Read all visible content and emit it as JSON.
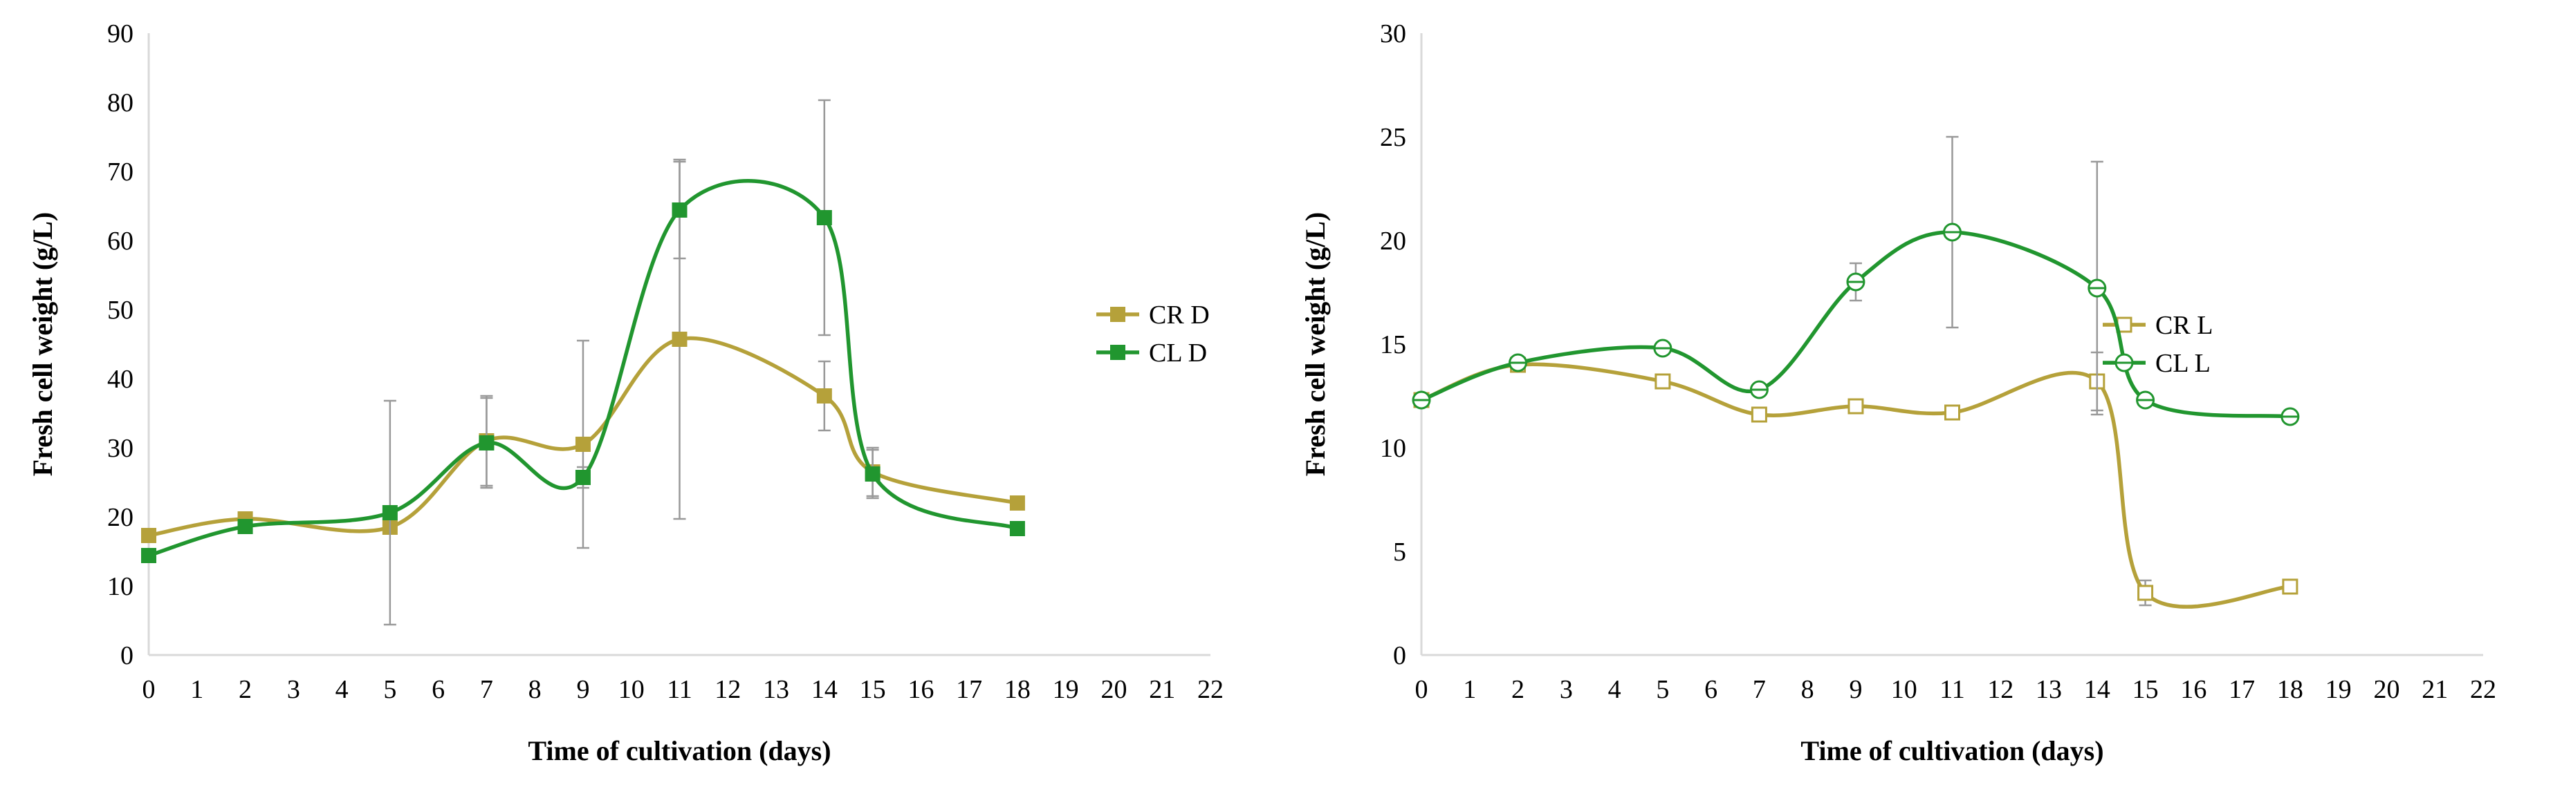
{
  "figure": {
    "colors": {
      "cr": "#b5a13a",
      "cl": "#21962f",
      "error_bar": "#999999",
      "axis": "#d9d9d9",
      "text": "#000000"
    }
  },
  "chart_data": [
    {
      "type": "line",
      "title": "",
      "xlabel": "Time of cultivation (days)",
      "ylabel": "Fresh cell weight (g/L)",
      "xlim": [
        0,
        22
      ],
      "ylim": [
        0,
        90
      ],
      "x_ticks": [
        "0",
        "1",
        "2",
        "3",
        "4",
        "5",
        "6",
        "7",
        "8",
        "9",
        "10",
        "11",
        "12",
        "13",
        "14",
        "15",
        "16",
        "17",
        "18",
        "19",
        "20",
        "21",
        "22"
      ],
      "y_ticks": [
        "0",
        "10",
        "20",
        "30",
        "40",
        "50",
        "60",
        "70",
        "80",
        "90"
      ],
      "grid": false,
      "legend_position": "right",
      "marker": "filled-square",
      "series": [
        {
          "name": "CR D",
          "color": "#b5a13a",
          "x": [
            0,
            2,
            5,
            7,
            9,
            11,
            14,
            15,
            18
          ],
          "y": [
            17.3,
            19.7,
            18.5,
            31.0,
            30.5,
            45.7,
            37.5,
            26.5,
            22.0
          ],
          "error": [
            0,
            0,
            0,
            6.5,
            15.0,
            26.0,
            5.0,
            3.5,
            0
          ]
        },
        {
          "name": "CL D",
          "color": "#21962f",
          "x": [
            0,
            2,
            5,
            7,
            9,
            11,
            14,
            15,
            18
          ],
          "y": [
            14.4,
            18.6,
            20.6,
            30.7,
            25.7,
            64.4,
            63.3,
            26.2,
            18.3
          ],
          "error": [
            0,
            0,
            16.2,
            6.5,
            1.5,
            7.0,
            17.0,
            3.5,
            0
          ]
        }
      ]
    },
    {
      "type": "line",
      "title": "",
      "xlabel": "Time of cultivation (days)",
      "ylabel": "Fresh cell weight (g/L)",
      "xlim": [
        0,
        22
      ],
      "ylim": [
        0,
        30
      ],
      "x_ticks": [
        "0",
        "1",
        "2",
        "3",
        "4",
        "5",
        "6",
        "7",
        "8",
        "9",
        "10",
        "11",
        "12",
        "13",
        "14",
        "15",
        "16",
        "17",
        "18",
        "19",
        "20",
        "21",
        "22"
      ],
      "y_ticks": [
        "0",
        "5",
        "10",
        "15",
        "20",
        "25",
        "30"
      ],
      "grid": false,
      "legend_position": "right",
      "marker": "open",
      "series": [
        {
          "name": "CR L",
          "color": "#b5a13a",
          "marker": "open-square",
          "x": [
            0,
            2,
            5,
            7,
            9,
            11,
            14,
            15,
            18
          ],
          "y": [
            12.3,
            14.0,
            13.2,
            11.6,
            12.0,
            11.7,
            13.2,
            3.0,
            3.3
          ],
          "error": [
            0,
            0,
            0,
            0,
            0,
            0,
            1.4,
            0.6,
            0
          ]
        },
        {
          "name": "CL L",
          "color": "#21962f",
          "marker": "open-circle",
          "x": [
            0,
            2,
            5,
            7,
            9,
            11,
            14,
            15,
            18
          ],
          "y": [
            12.3,
            14.1,
            14.8,
            12.8,
            18.0,
            20.4,
            17.7,
            12.3,
            11.5
          ],
          "error": [
            0,
            0,
            0,
            0,
            0.9,
            4.6,
            6.1,
            0,
            0.3
          ]
        }
      ]
    }
  ]
}
